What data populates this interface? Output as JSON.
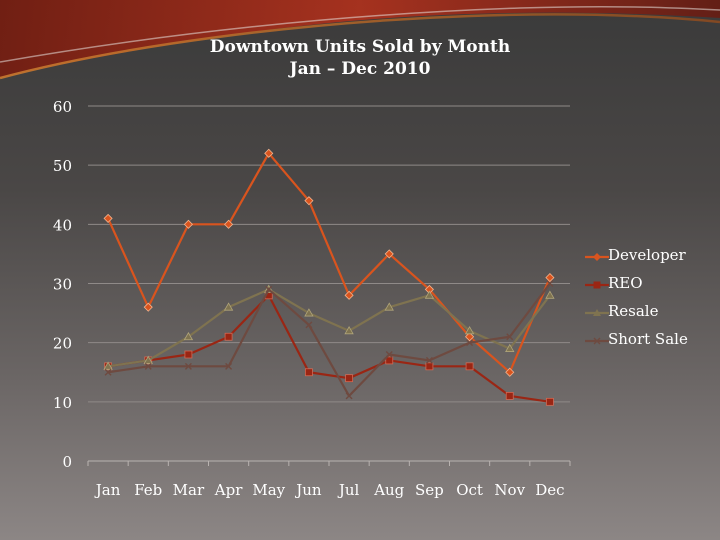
{
  "chart_data": {
    "type": "line",
    "title": "Downtown Units Sold by Month",
    "subtitle": "Jan – Dec 2010",
    "xlabel": "",
    "ylabel": "",
    "categories": [
      "Jan",
      "Feb",
      "Mar",
      "Apr",
      "May",
      "Jun",
      "Jul",
      "Aug",
      "Sep",
      "Oct",
      "Nov",
      "Dec"
    ],
    "ylim": [
      0,
      60
    ],
    "yticks": [
      0,
      10,
      20,
      30,
      40,
      50,
      60
    ],
    "grid": true,
    "legend_position": "right",
    "series": [
      {
        "name": "Developer",
        "color": "#d9541e",
        "marker": "diamond",
        "values": [
          41,
          26,
          40,
          40,
          52,
          44,
          28,
          35,
          29,
          21,
          15,
          31
        ]
      },
      {
        "name": "REO",
        "color": "#9a2614",
        "marker": "square",
        "values": [
          16,
          17,
          18,
          21,
          28,
          15,
          14,
          17,
          16,
          16,
          11,
          10
        ]
      },
      {
        "name": "Resale",
        "color": "#7f7350",
        "marker": "triangle",
        "values": [
          16,
          17,
          21,
          26,
          29,
          25,
          22,
          26,
          28,
          22,
          19,
          28
        ]
      },
      {
        "name": "Short Sale",
        "color": "#6e4a40",
        "marker": "x",
        "values": [
          15,
          16,
          16,
          16,
          29,
          23,
          11,
          18,
          17,
          20,
          21,
          30
        ]
      }
    ]
  }
}
